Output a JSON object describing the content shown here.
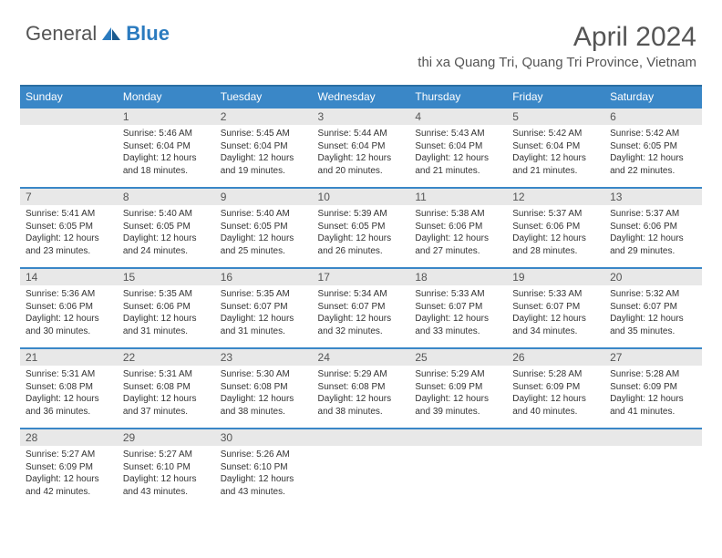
{
  "logo": {
    "general": "General",
    "blue": "Blue"
  },
  "title": "April 2024",
  "location": "thi xa Quang Tri, Quang Tri Province, Vietnam",
  "dow": [
    "Sunday",
    "Monday",
    "Tuesday",
    "Wednesday",
    "Thursday",
    "Friday",
    "Saturday"
  ],
  "colors": {
    "header_bg": "#3a87c7",
    "header_border": "#2b6ea3",
    "daynum_bg": "#e8e8e8",
    "text": "#333333",
    "muted": "#555555",
    "brand_blue": "#2b7bbf",
    "page_bg": "#ffffff"
  },
  "typography": {
    "title_fontsize": 30,
    "location_fontsize": 15,
    "dow_fontsize": 12,
    "daynum_fontsize": 12,
    "content_fontsize": 10
  },
  "layout": {
    "cols": 7,
    "rows": 5,
    "first_weekday_index": 1
  },
  "days": [
    {
      "n": 1,
      "sr": "5:46 AM",
      "ss": "6:04 PM",
      "dl": "12 hours and 18 minutes."
    },
    {
      "n": 2,
      "sr": "5:45 AM",
      "ss": "6:04 PM",
      "dl": "12 hours and 19 minutes."
    },
    {
      "n": 3,
      "sr": "5:44 AM",
      "ss": "6:04 PM",
      "dl": "12 hours and 20 minutes."
    },
    {
      "n": 4,
      "sr": "5:43 AM",
      "ss": "6:04 PM",
      "dl": "12 hours and 21 minutes."
    },
    {
      "n": 5,
      "sr": "5:42 AM",
      "ss": "6:04 PM",
      "dl": "12 hours and 21 minutes."
    },
    {
      "n": 6,
      "sr": "5:42 AM",
      "ss": "6:05 PM",
      "dl": "12 hours and 22 minutes."
    },
    {
      "n": 7,
      "sr": "5:41 AM",
      "ss": "6:05 PM",
      "dl": "12 hours and 23 minutes."
    },
    {
      "n": 8,
      "sr": "5:40 AM",
      "ss": "6:05 PM",
      "dl": "12 hours and 24 minutes."
    },
    {
      "n": 9,
      "sr": "5:40 AM",
      "ss": "6:05 PM",
      "dl": "12 hours and 25 minutes."
    },
    {
      "n": 10,
      "sr": "5:39 AM",
      "ss": "6:05 PM",
      "dl": "12 hours and 26 minutes."
    },
    {
      "n": 11,
      "sr": "5:38 AM",
      "ss": "6:06 PM",
      "dl": "12 hours and 27 minutes."
    },
    {
      "n": 12,
      "sr": "5:37 AM",
      "ss": "6:06 PM",
      "dl": "12 hours and 28 minutes."
    },
    {
      "n": 13,
      "sr": "5:37 AM",
      "ss": "6:06 PM",
      "dl": "12 hours and 29 minutes."
    },
    {
      "n": 14,
      "sr": "5:36 AM",
      "ss": "6:06 PM",
      "dl": "12 hours and 30 minutes."
    },
    {
      "n": 15,
      "sr": "5:35 AM",
      "ss": "6:06 PM",
      "dl": "12 hours and 31 minutes."
    },
    {
      "n": 16,
      "sr": "5:35 AM",
      "ss": "6:07 PM",
      "dl": "12 hours and 31 minutes."
    },
    {
      "n": 17,
      "sr": "5:34 AM",
      "ss": "6:07 PM",
      "dl": "12 hours and 32 minutes."
    },
    {
      "n": 18,
      "sr": "5:33 AM",
      "ss": "6:07 PM",
      "dl": "12 hours and 33 minutes."
    },
    {
      "n": 19,
      "sr": "5:33 AM",
      "ss": "6:07 PM",
      "dl": "12 hours and 34 minutes."
    },
    {
      "n": 20,
      "sr": "5:32 AM",
      "ss": "6:07 PM",
      "dl": "12 hours and 35 minutes."
    },
    {
      "n": 21,
      "sr": "5:31 AM",
      "ss": "6:08 PM",
      "dl": "12 hours and 36 minutes."
    },
    {
      "n": 22,
      "sr": "5:31 AM",
      "ss": "6:08 PM",
      "dl": "12 hours and 37 minutes."
    },
    {
      "n": 23,
      "sr": "5:30 AM",
      "ss": "6:08 PM",
      "dl": "12 hours and 38 minutes."
    },
    {
      "n": 24,
      "sr": "5:29 AM",
      "ss": "6:08 PM",
      "dl": "12 hours and 38 minutes."
    },
    {
      "n": 25,
      "sr": "5:29 AM",
      "ss": "6:09 PM",
      "dl": "12 hours and 39 minutes."
    },
    {
      "n": 26,
      "sr": "5:28 AM",
      "ss": "6:09 PM",
      "dl": "12 hours and 40 minutes."
    },
    {
      "n": 27,
      "sr": "5:28 AM",
      "ss": "6:09 PM",
      "dl": "12 hours and 41 minutes."
    },
    {
      "n": 28,
      "sr": "5:27 AM",
      "ss": "6:09 PM",
      "dl": "12 hours and 42 minutes."
    },
    {
      "n": 29,
      "sr": "5:27 AM",
      "ss": "6:10 PM",
      "dl": "12 hours and 43 minutes."
    },
    {
      "n": 30,
      "sr": "5:26 AM",
      "ss": "6:10 PM",
      "dl": "12 hours and 43 minutes."
    }
  ],
  "labels": {
    "sunrise": "Sunrise:",
    "sunset": "Sunset:",
    "daylight": "Daylight:"
  }
}
